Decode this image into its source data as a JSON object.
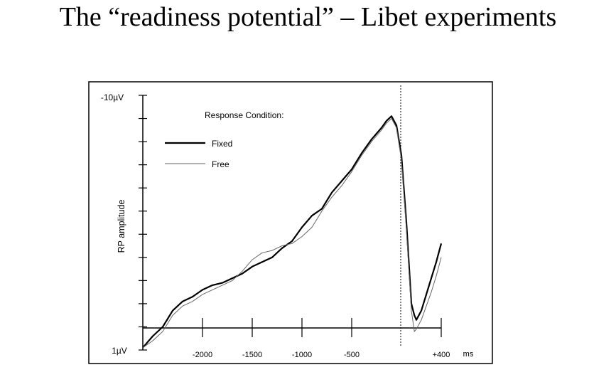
{
  "slide": {
    "title": "The “readiness potential” – Libet experiments"
  },
  "chart_data": {
    "type": "line",
    "title": "",
    "ylabel": "RP amplitude",
    "xlabel": "",
    "x_unit": "ms",
    "y_axis": {
      "top_label": "-10µV",
      "bottom_label": "1µV",
      "inverted": true,
      "range": [
        1,
        -10
      ]
    },
    "x_axis": {
      "range": [
        -2600,
        400
      ],
      "ticks": [
        -2000,
        -1500,
        -1000,
        -500,
        400
      ],
      "tick_labels": [
        "-2000",
        "-1500",
        "-1000",
        "-500",
        "+400"
      ],
      "reference_line_at": 0
    },
    "legend": {
      "title": "Response Condition:",
      "placement": "top-left"
    },
    "grid": false,
    "series": [
      {
        "name": "Fixed",
        "color": "#000000",
        "x": [
          -2600,
          -2500,
          -2400,
          -2300,
          -2200,
          -2100,
          -2000,
          -1900,
          -1800,
          -1700,
          -1600,
          -1500,
          -1400,
          -1300,
          -1200,
          -1100,
          -1000,
          -900,
          -800,
          -700,
          -600,
          -500,
          -400,
          -300,
          -200,
          -150,
          -100,
          -50,
          0,
          50,
          100,
          130,
          150,
          200,
          250,
          300,
          350,
          400
        ],
        "y": [
          0.9,
          0.4,
          0.0,
          -0.7,
          -1.1,
          -1.3,
          -1.6,
          -1.8,
          -1.9,
          -2.1,
          -2.3,
          -2.6,
          -2.8,
          -3.0,
          -3.4,
          -3.7,
          -4.3,
          -4.8,
          -5.1,
          -5.8,
          -6.3,
          -6.8,
          -7.5,
          -8.1,
          -8.6,
          -8.9,
          -9.1,
          -8.7,
          -7.4,
          -4.5,
          -1.0,
          -0.5,
          -0.3,
          -0.7,
          -1.4,
          -2.1,
          -2.8,
          -3.6
        ]
      },
      {
        "name": "Free",
        "color": "#666666",
        "x": [
          -2600,
          -2500,
          -2400,
          -2300,
          -2200,
          -2100,
          -2000,
          -1900,
          -1800,
          -1700,
          -1600,
          -1500,
          -1400,
          -1300,
          -1200,
          -1100,
          -1000,
          -900,
          -800,
          -700,
          -600,
          -500,
          -400,
          -300,
          -200,
          -150,
          -100,
          -50,
          0,
          50,
          100,
          130,
          150,
          200,
          250,
          300,
          350,
          400
        ],
        "y": [
          0.9,
          0.6,
          0.2,
          -0.5,
          -0.9,
          -1.1,
          -1.4,
          -1.6,
          -1.8,
          -2.0,
          -2.4,
          -2.9,
          -3.2,
          -3.3,
          -3.5,
          -3.6,
          -3.9,
          -4.3,
          -5.0,
          -5.6,
          -6.1,
          -6.7,
          -7.4,
          -8.0,
          -8.5,
          -8.8,
          -9.0,
          -8.6,
          -7.2,
          -4.2,
          -0.7,
          0.2,
          0.1,
          -0.3,
          -0.9,
          -1.5,
          -2.2,
          -3.0
        ]
      }
    ]
  }
}
